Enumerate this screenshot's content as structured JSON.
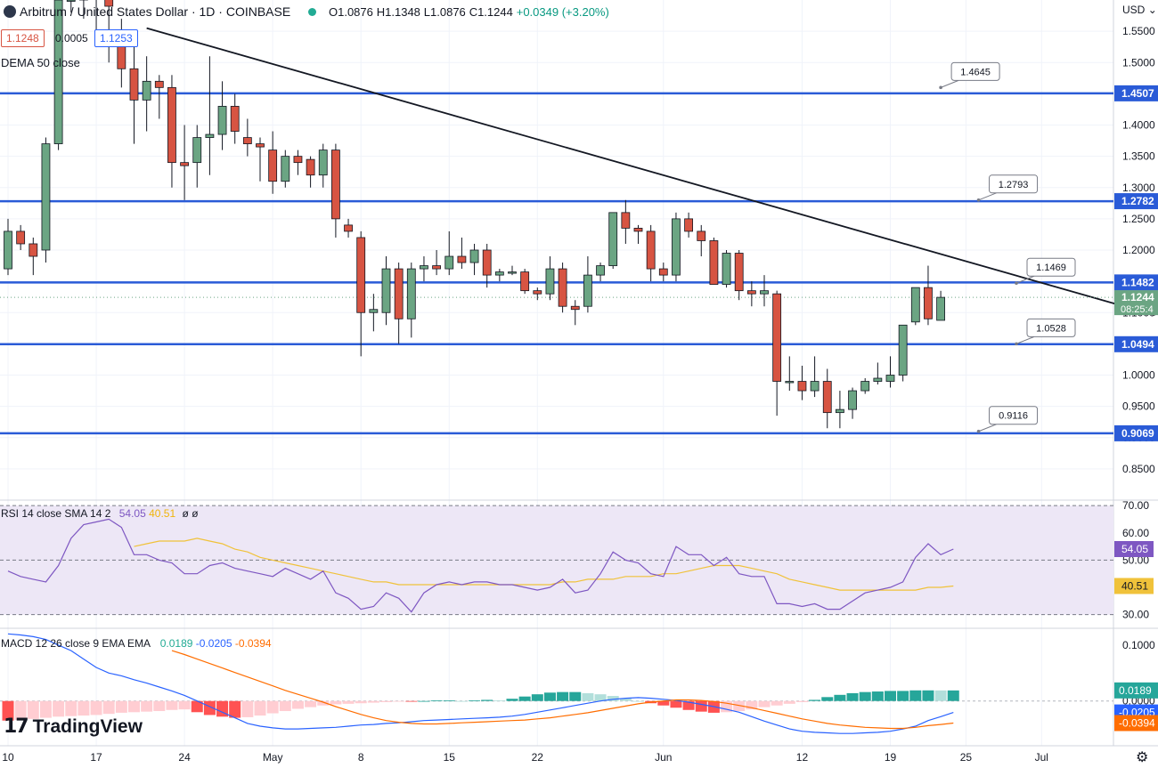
{
  "header": {
    "title": "Arbitrum / United States Dollar · 1D · COINBASE",
    "open": "O1.0876",
    "high": "H1.1348",
    "low": "L1.0876",
    "close": "C1.1244",
    "change": "+0.0349 (+3.20%)",
    "bid": "1.1248",
    "spread": "0.0005",
    "ask": "1.1253",
    "indicator": "DEMA 50 close",
    "currency": "USD"
  },
  "brand": {
    "mark": "17",
    "name": "TradingView"
  },
  "chart_data": [
    {
      "type": "candlestick",
      "ylim": [
        0.8,
        1.6
      ],
      "y_ticks": [
        "1.5500",
        "1.5000",
        "1.4500",
        "1.4000",
        "1.3500",
        "1.3000",
        "1.2500",
        "1.2000",
        "1.1500",
        "1.1000",
        "1.0500",
        "1.0000",
        "0.9500",
        "0.9000",
        "0.8500"
      ],
      "y_tick_values": [
        1.55,
        1.5,
        1.45,
        1.4,
        1.35,
        1.3,
        1.25,
        1.2,
        1.15,
        1.1,
        1.05,
        1.0,
        0.95,
        0.9,
        0.85
      ],
      "x_ticks": [
        {
          "label": "10",
          "day": 0
        },
        {
          "label": "17",
          "day": 7
        },
        {
          "label": "24",
          "day": 14
        },
        {
          "label": "May",
          "day": 21
        },
        {
          "label": "8",
          "day": 28
        },
        {
          "label": "15",
          "day": 35
        },
        {
          "label": "22",
          "day": 42
        },
        {
          "label": "Jun",
          "day": 52
        },
        {
          "label": "12",
          "day": 63
        },
        {
          "label": "19",
          "day": 70
        },
        {
          "label": "25",
          "day": 76
        },
        {
          "label": "Jul",
          "day": 82
        }
      ],
      "candles": [
        {
          "d": 0,
          "o": 1.17,
          "h": 1.25,
          "l": 1.16,
          "c": 1.23
        },
        {
          "d": 1,
          "o": 1.23,
          "h": 1.24,
          "l": 1.2,
          "c": 1.21
        },
        {
          "d": 2,
          "o": 1.21,
          "h": 1.22,
          "l": 1.16,
          "c": 1.19
        },
        {
          "d": 3,
          "o": 1.2,
          "h": 1.38,
          "l": 1.18,
          "c": 1.37
        },
        {
          "d": 4,
          "o": 1.37,
          "h": 1.62,
          "l": 1.36,
          "c": 1.6
        },
        {
          "d": 5,
          "o": 1.6,
          "h": 1.62,
          "l": 1.58,
          "c": 1.6
        },
        {
          "d": 6,
          "o": 1.6,
          "h": 1.62,
          "l": 1.57,
          "c": 1.62
        },
        {
          "d": 7,
          "o": 1.62,
          "h": 1.63,
          "l": 1.55,
          "c": 1.61
        },
        {
          "d": 8,
          "o": 1.61,
          "h": 1.62,
          "l": 1.5,
          "c": 1.59
        },
        {
          "d": 9,
          "o": 1.55,
          "h": 1.57,
          "l": 1.46,
          "c": 1.49
        },
        {
          "d": 10,
          "o": 1.49,
          "h": 1.54,
          "l": 1.37,
          "c": 1.44
        },
        {
          "d": 11,
          "o": 1.44,
          "h": 1.51,
          "l": 1.39,
          "c": 1.47
        },
        {
          "d": 12,
          "o": 1.47,
          "h": 1.48,
          "l": 1.41,
          "c": 1.46
        },
        {
          "d": 13,
          "o": 1.46,
          "h": 1.48,
          "l": 1.3,
          "c": 1.34
        },
        {
          "d": 14,
          "o": 1.34,
          "h": 1.4,
          "l": 1.28,
          "c": 1.335
        },
        {
          "d": 15,
          "o": 1.34,
          "h": 1.4,
          "l": 1.3,
          "c": 1.38
        },
        {
          "d": 16,
          "o": 1.38,
          "h": 1.51,
          "l": 1.32,
          "c": 1.385
        },
        {
          "d": 17,
          "o": 1.385,
          "h": 1.47,
          "l": 1.36,
          "c": 1.43
        },
        {
          "d": 18,
          "o": 1.43,
          "h": 1.45,
          "l": 1.37,
          "c": 1.39
        },
        {
          "d": 19,
          "o": 1.38,
          "h": 1.41,
          "l": 1.35,
          "c": 1.37
        },
        {
          "d": 20,
          "o": 1.37,
          "h": 1.38,
          "l": 1.31,
          "c": 1.365
        },
        {
          "d": 21,
          "o": 1.36,
          "h": 1.39,
          "l": 1.29,
          "c": 1.31
        },
        {
          "d": 22,
          "o": 1.31,
          "h": 1.36,
          "l": 1.3,
          "c": 1.35
        },
        {
          "d": 23,
          "o": 1.35,
          "h": 1.36,
          "l": 1.32,
          "c": 1.34
        },
        {
          "d": 24,
          "o": 1.345,
          "h": 1.35,
          "l": 1.3,
          "c": 1.32
        },
        {
          "d": 25,
          "o": 1.32,
          "h": 1.37,
          "l": 1.3,
          "c": 1.36
        },
        {
          "d": 26,
          "o": 1.36,
          "h": 1.37,
          "l": 1.22,
          "c": 1.25
        },
        {
          "d": 27,
          "o": 1.24,
          "h": 1.25,
          "l": 1.22,
          "c": 1.23
        },
        {
          "d": 28,
          "o": 1.22,
          "h": 1.23,
          "l": 1.03,
          "c": 1.1
        },
        {
          "d": 29,
          "o": 1.1,
          "h": 1.13,
          "l": 1.07,
          "c": 1.105
        },
        {
          "d": 30,
          "o": 1.1,
          "h": 1.19,
          "l": 1.08,
          "c": 1.17
        },
        {
          "d": 31,
          "o": 1.17,
          "h": 1.18,
          "l": 1.05,
          "c": 1.09
        },
        {
          "d": 32,
          "o": 1.09,
          "h": 1.18,
          "l": 1.06,
          "c": 1.17
        },
        {
          "d": 33,
          "o": 1.17,
          "h": 1.19,
          "l": 1.15,
          "c": 1.175
        },
        {
          "d": 34,
          "o": 1.175,
          "h": 1.2,
          "l": 1.16,
          "c": 1.17
        },
        {
          "d": 35,
          "o": 1.17,
          "h": 1.23,
          "l": 1.16,
          "c": 1.19
        },
        {
          "d": 36,
          "o": 1.19,
          "h": 1.22,
          "l": 1.17,
          "c": 1.18
        },
        {
          "d": 37,
          "o": 1.18,
          "h": 1.21,
          "l": 1.16,
          "c": 1.2
        },
        {
          "d": 38,
          "o": 1.2,
          "h": 1.21,
          "l": 1.14,
          "c": 1.16
        },
        {
          "d": 39,
          "o": 1.16,
          "h": 1.17,
          "l": 1.15,
          "c": 1.165
        },
        {
          "d": 40,
          "o": 1.165,
          "h": 1.175,
          "l": 1.16,
          "c": 1.165
        },
        {
          "d": 41,
          "o": 1.165,
          "h": 1.17,
          "l": 1.13,
          "c": 1.135
        },
        {
          "d": 42,
          "o": 1.135,
          "h": 1.14,
          "l": 1.12,
          "c": 1.13
        },
        {
          "d": 43,
          "o": 1.13,
          "h": 1.19,
          "l": 1.12,
          "c": 1.17
        },
        {
          "d": 44,
          "o": 1.17,
          "h": 1.18,
          "l": 1.1,
          "c": 1.11
        },
        {
          "d": 45,
          "o": 1.11,
          "h": 1.12,
          "l": 1.08,
          "c": 1.105
        },
        {
          "d": 46,
          "o": 1.11,
          "h": 1.19,
          "l": 1.1,
          "c": 1.16
        },
        {
          "d": 47,
          "o": 1.16,
          "h": 1.18,
          "l": 1.15,
          "c": 1.175
        },
        {
          "d": 48,
          "o": 1.175,
          "h": 1.26,
          "l": 1.17,
          "c": 1.26
        },
        {
          "d": 49,
          "o": 1.26,
          "h": 1.28,
          "l": 1.21,
          "c": 1.235
        },
        {
          "d": 50,
          "o": 1.235,
          "h": 1.24,
          "l": 1.21,
          "c": 1.23
        },
        {
          "d": 51,
          "o": 1.23,
          "h": 1.24,
          "l": 1.15,
          "c": 1.17
        },
        {
          "d": 52,
          "o": 1.17,
          "h": 1.18,
          "l": 1.15,
          "c": 1.16
        },
        {
          "d": 53,
          "o": 1.16,
          "h": 1.26,
          "l": 1.15,
          "c": 1.25
        },
        {
          "d": 54,
          "o": 1.25,
          "h": 1.26,
          "l": 1.22,
          "c": 1.23
        },
        {
          "d": 55,
          "o": 1.23,
          "h": 1.24,
          "l": 1.19,
          "c": 1.215
        },
        {
          "d": 56,
          "o": 1.215,
          "h": 1.22,
          "l": 1.15,
          "c": 1.145
        },
        {
          "d": 57,
          "o": 1.145,
          "h": 1.2,
          "l": 1.14,
          "c": 1.195
        },
        {
          "d": 58,
          "o": 1.195,
          "h": 1.2,
          "l": 1.12,
          "c": 1.135
        },
        {
          "d": 59,
          "o": 1.135,
          "h": 1.15,
          "l": 1.11,
          "c": 1.13
        },
        {
          "d": 60,
          "o": 1.13,
          "h": 1.16,
          "l": 1.11,
          "c": 1.135
        },
        {
          "d": 61,
          "o": 1.13,
          "h": 1.135,
          "l": 0.935,
          "c": 0.99
        },
        {
          "d": 62,
          "o": 0.99,
          "h": 1.03,
          "l": 0.975,
          "c": 0.99
        },
        {
          "d": 63,
          "o": 0.99,
          "h": 1.015,
          "l": 0.96,
          "c": 0.975
        },
        {
          "d": 64,
          "o": 0.975,
          "h": 1.03,
          "l": 0.965,
          "c": 0.99
        },
        {
          "d": 65,
          "o": 0.99,
          "h": 1.01,
          "l": 0.915,
          "c": 0.94
        },
        {
          "d": 66,
          "o": 0.94,
          "h": 0.975,
          "l": 0.915,
          "c": 0.945
        },
        {
          "d": 67,
          "o": 0.945,
          "h": 0.98,
          "l": 0.93,
          "c": 0.975
        },
        {
          "d": 68,
          "o": 0.975,
          "h": 0.995,
          "l": 0.97,
          "c": 0.99
        },
        {
          "d": 69,
          "o": 0.99,
          "h": 1.02,
          "l": 0.985,
          "c": 0.995
        },
        {
          "d": 70,
          "o": 0.99,
          "h": 1.03,
          "l": 0.98,
          "c": 1.0
        },
        {
          "d": 71,
          "o": 1.0,
          "h": 1.08,
          "l": 0.99,
          "c": 1.08
        },
        {
          "d": 72,
          "o": 1.085,
          "h": 1.14,
          "l": 1.08,
          "c": 1.14
        },
        {
          "d": 73,
          "o": 1.14,
          "h": 1.175,
          "l": 1.08,
          "c": 1.09
        },
        {
          "d": 74,
          "o": 1.0876,
          "h": 1.1348,
          "l": 1.0876,
          "c": 1.1244
        }
      ],
      "horizontal_levels": [
        {
          "value": 1.4507,
          "label": "1.4507"
        },
        {
          "value": 1.2782,
          "label": "1.2782"
        },
        {
          "value": 1.1482,
          "label": "1.1482"
        },
        {
          "value": 1.0494,
          "label": "1.0494"
        },
        {
          "value": 0.9069,
          "label": "0.9069"
        }
      ],
      "callouts": [
        {
          "label": "1.4645",
          "day": 74,
          "value": 1.46
        },
        {
          "label": "1.2793",
          "day": 77,
          "value": 1.28
        },
        {
          "label": "1.1469",
          "day": 80,
          "value": 1.147
        },
        {
          "label": "1.0528",
          "day": 80,
          "value": 1.05
        },
        {
          "label": "0.9116",
          "day": 77,
          "value": 0.91
        }
      ],
      "trendline": {
        "x1": 11,
        "y1": 1.555,
        "x2": 91,
        "y2": 1.096
      },
      "last_price": {
        "value": 1.1244,
        "label": "1.1244",
        "countdown": "08:25:4"
      }
    },
    {
      "type": "line",
      "name": "RSI 14 close SMA 14 2",
      "legend_values": [
        "54.05",
        "40.51",
        "ø",
        "ø"
      ],
      "ylim": [
        25,
        72
      ],
      "y_ticks": [
        "70.00",
        "60.00",
        "50.00",
        "40.00",
        "30.00"
      ],
      "y_tick_values": [
        70,
        60,
        50,
        40,
        30
      ],
      "band": [
        30,
        70
      ],
      "rsi": [
        46,
        44,
        43,
        42,
        48,
        58,
        63,
        64,
        65,
        62,
        52,
        52,
        50,
        49,
        45,
        45,
        48,
        49,
        47,
        46,
        45,
        44,
        47,
        45,
        43,
        46,
        38,
        36,
        32,
        33,
        38,
        36,
        31,
        38,
        41,
        42,
        41,
        42,
        42,
        41,
        41,
        40,
        39,
        40,
        43,
        38,
        39,
        45,
        53,
        50,
        49,
        45,
        44,
        55,
        52,
        52,
        48,
        51,
        45,
        44,
        44,
        34,
        34,
        33,
        34,
        32,
        32,
        35,
        38,
        39,
        40,
        42,
        51,
        56,
        52,
        54.05
      ],
      "signal": [
        null,
        null,
        null,
        null,
        null,
        null,
        null,
        null,
        null,
        null,
        55,
        56,
        57,
        57,
        57,
        58,
        57,
        56,
        54,
        53,
        51,
        50,
        49,
        48,
        47,
        46,
        45,
        44,
        43,
        42,
        42,
        41,
        41,
        41,
        41,
        41,
        41,
        41,
        41,
        41,
        41,
        41,
        41,
        41,
        42,
        42,
        43,
        43,
        43,
        44,
        44,
        44,
        45,
        45,
        46,
        47,
        48,
        48,
        48,
        47,
        46,
        45,
        43,
        42,
        41,
        40,
        39,
        39,
        39,
        39,
        39,
        39,
        39,
        40,
        40,
        40.51
      ],
      "rsi_label": "54.05",
      "signal_label": "40.51"
    },
    {
      "type": "bar",
      "name": "MACD 12 26 close 9 EMA EMA",
      "legend_values": [
        "0.0189",
        "-0.0205",
        "-0.0394"
      ],
      "ylim": [
        -0.08,
        0.13
      ],
      "y_ticks": [
        "0.1000",
        "0.0000"
      ],
      "y_tick_values": [
        0.1,
        0.0
      ],
      "histogram": [
        -0.035,
        -0.034,
        -0.032,
        -0.03,
        -0.028,
        -0.027,
        -0.026,
        -0.025,
        -0.023,
        -0.021,
        -0.02,
        -0.019,
        -0.018,
        -0.016,
        -0.015,
        -0.02,
        -0.025,
        -0.028,
        -0.03,
        -0.029,
        -0.026,
        -0.022,
        -0.018,
        -0.014,
        -0.011,
        -0.008,
        -0.006,
        -0.005,
        -0.004,
        -0.003,
        -0.002,
        -0.001,
        -0.001,
        0.0,
        0.001,
        0.001,
        0.0,
        0.001,
        0.002,
        0.001,
        0.004,
        0.008,
        0.012,
        0.015,
        0.016,
        0.016,
        0.014,
        0.012,
        0.009,
        0.005,
        0.0,
        -0.004,
        -0.008,
        -0.012,
        -0.016,
        -0.019,
        -0.021,
        -0.02,
        -0.018,
        -0.015,
        -0.011,
        -0.008,
        -0.005,
        -0.002,
        0.002,
        0.007,
        0.011,
        0.014,
        0.016,
        0.017,
        0.018,
        0.018,
        0.019,
        0.019,
        0.0189,
        0.0189
      ],
      "macd": [
        0.12,
        0.118,
        0.115,
        0.11,
        0.1,
        0.09,
        0.075,
        0.06,
        0.05,
        0.045,
        0.038,
        0.032,
        0.025,
        0.018,
        0.01,
        0.0,
        -0.01,
        -0.02,
        -0.03,
        -0.04,
        -0.045,
        -0.048,
        -0.05,
        -0.05,
        -0.049,
        -0.048,
        -0.047,
        -0.045,
        -0.043,
        -0.042,
        -0.04,
        -0.039,
        -0.037,
        -0.035,
        -0.034,
        -0.033,
        -0.032,
        -0.031,
        -0.03,
        -0.029,
        -0.027,
        -0.024,
        -0.02,
        -0.016,
        -0.012,
        -0.008,
        -0.004,
        0.0,
        0.003,
        0.005,
        0.006,
        0.005,
        0.003,
        0.001,
        -0.002,
        -0.006,
        -0.01,
        -0.015,
        -0.02,
        -0.028,
        -0.036,
        -0.043,
        -0.05,
        -0.054,
        -0.056,
        -0.057,
        -0.058,
        -0.058,
        -0.057,
        -0.056,
        -0.054,
        -0.05,
        -0.045,
        -0.035,
        -0.028,
        -0.0205
      ],
      "signal": [
        null,
        null,
        null,
        null,
        null,
        null,
        null,
        null,
        null,
        null,
        null,
        null,
        null,
        0.09,
        0.083,
        0.075,
        0.067,
        0.059,
        0.051,
        0.043,
        0.035,
        0.027,
        0.019,
        0.012,
        0.005,
        -0.002,
        -0.01,
        -0.017,
        -0.024,
        -0.03,
        -0.035,
        -0.038,
        -0.04,
        -0.041,
        -0.041,
        -0.04,
        -0.039,
        -0.038,
        -0.037,
        -0.036,
        -0.035,
        -0.034,
        -0.032,
        -0.03,
        -0.027,
        -0.024,
        -0.021,
        -0.017,
        -0.013,
        -0.009,
        -0.005,
        -0.002,
        0.0,
        0.002,
        0.002,
        0.001,
        -0.001,
        -0.004,
        -0.008,
        -0.012,
        -0.017,
        -0.022,
        -0.027,
        -0.032,
        -0.036,
        -0.04,
        -0.043,
        -0.045,
        -0.047,
        -0.048,
        -0.049,
        -0.049,
        -0.047,
        -0.044,
        -0.042,
        -0.0394
      ],
      "hist_label": "0.0189",
      "macd_label": "-0.0205",
      "signal_label": "-0.0394"
    }
  ],
  "colors": {
    "up": "#6ba583",
    "down": "#d75442",
    "level": "#2a5bd7",
    "trend": "#131722",
    "rsi": "#7e57c2",
    "rsi_sma": "#f0c23a",
    "rsi_band": "#ede7f6",
    "macd": "#2962ff",
    "macd_signal": "#ff6d00",
    "hist_pos_strong": "#26a69a",
    "hist_pos_weak": "#b2dfdb",
    "hist_neg_strong": "#ff5252",
    "hist_neg_weak": "#ffcdd2",
    "grid": "#f0f3fa"
  },
  "icons": {
    "settings": "gear-icon",
    "status": "market-open-dot-icon"
  }
}
